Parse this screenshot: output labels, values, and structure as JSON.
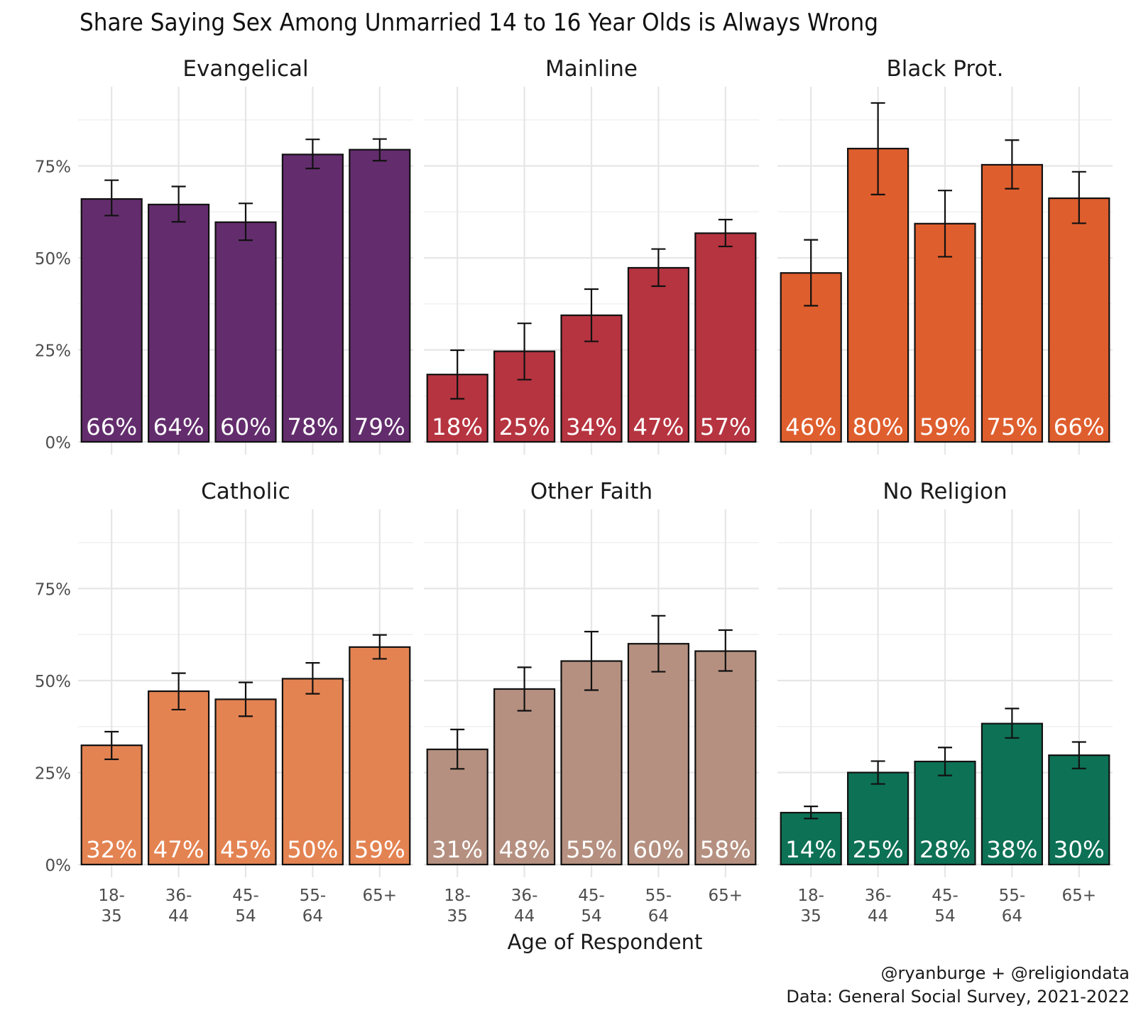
{
  "chart_data": {
    "type": "bar",
    "title": "Share Saying Sex Among Unmarried 14 to 16 Year Olds is Always Wrong",
    "xlabel": "Age of Respondent",
    "ylabel": "",
    "ylim": [
      0,
      0.97
    ],
    "yticks": [
      0,
      0.25,
      0.5,
      0.75
    ],
    "ytick_labels": [
      "0%",
      "25%",
      "50%",
      "75%"
    ],
    "categories": [
      "18-\n35",
      "36-\n44",
      "45-\n54",
      "55-\n64",
      "65+"
    ],
    "grid": true,
    "panels": [
      {
        "name": "Evangelical",
        "color": "#632d6d",
        "values": [
          0.66,
          0.645,
          0.597,
          0.781,
          0.794
        ],
        "ci_low": [
          0.615,
          0.598,
          0.548,
          0.743,
          0.764
        ],
        "ci_high": [
          0.711,
          0.694,
          0.648,
          0.822,
          0.823
        ],
        "labels": [
          "66%",
          "64%",
          "60%",
          "78%",
          "79%"
        ]
      },
      {
        "name": "Mainline",
        "color": "#b63440",
        "values": [
          0.183,
          0.246,
          0.344,
          0.473,
          0.567
        ],
        "ci_low": [
          0.117,
          0.169,
          0.273,
          0.423,
          0.531
        ],
        "ci_high": [
          0.249,
          0.322,
          0.415,
          0.524,
          0.604
        ],
        "labels": [
          "18%",
          "25%",
          "34%",
          "47%",
          "57%"
        ]
      },
      {
        "name": "Black Prot.",
        "color": "#df5e2e",
        "values": [
          0.459,
          0.797,
          0.593,
          0.753,
          0.662
        ],
        "ci_low": [
          0.37,
          0.672,
          0.503,
          0.688,
          0.594
        ],
        "ci_high": [
          0.549,
          0.921,
          0.683,
          0.82,
          0.734
        ],
        "labels": [
          "46%",
          "80%",
          "59%",
          "75%",
          "66%"
        ]
      },
      {
        "name": "Catholic",
        "color": "#e48352",
        "values": [
          0.324,
          0.471,
          0.449,
          0.505,
          0.591
        ],
        "ci_low": [
          0.286,
          0.421,
          0.403,
          0.464,
          0.559
        ],
        "ci_high": [
          0.361,
          0.52,
          0.495,
          0.548,
          0.624
        ],
        "labels": [
          "32%",
          "47%",
          "45%",
          "50%",
          "59%"
        ]
      },
      {
        "name": "Other Faith",
        "color": "#b59080",
        "values": [
          0.313,
          0.477,
          0.553,
          0.6,
          0.58
        ],
        "ci_low": [
          0.26,
          0.418,
          0.474,
          0.524,
          0.526
        ],
        "ci_high": [
          0.367,
          0.536,
          0.633,
          0.676,
          0.637
        ],
        "labels": [
          "31%",
          "48%",
          "55%",
          "60%",
          "58%"
        ]
      },
      {
        "name": "No Religion",
        "color": "#0d7155",
        "values": [
          0.141,
          0.25,
          0.28,
          0.383,
          0.297
        ],
        "ci_low": [
          0.125,
          0.219,
          0.242,
          0.344,
          0.261
        ],
        "ci_high": [
          0.158,
          0.281,
          0.318,
          0.424,
          0.333
        ],
        "labels": [
          "14%",
          "25%",
          "28%",
          "38%",
          "30%"
        ]
      }
    ],
    "caption": [
      "@ryanburge + @religiondata",
      "Data: General Social Survey, 2021-2022"
    ]
  }
}
